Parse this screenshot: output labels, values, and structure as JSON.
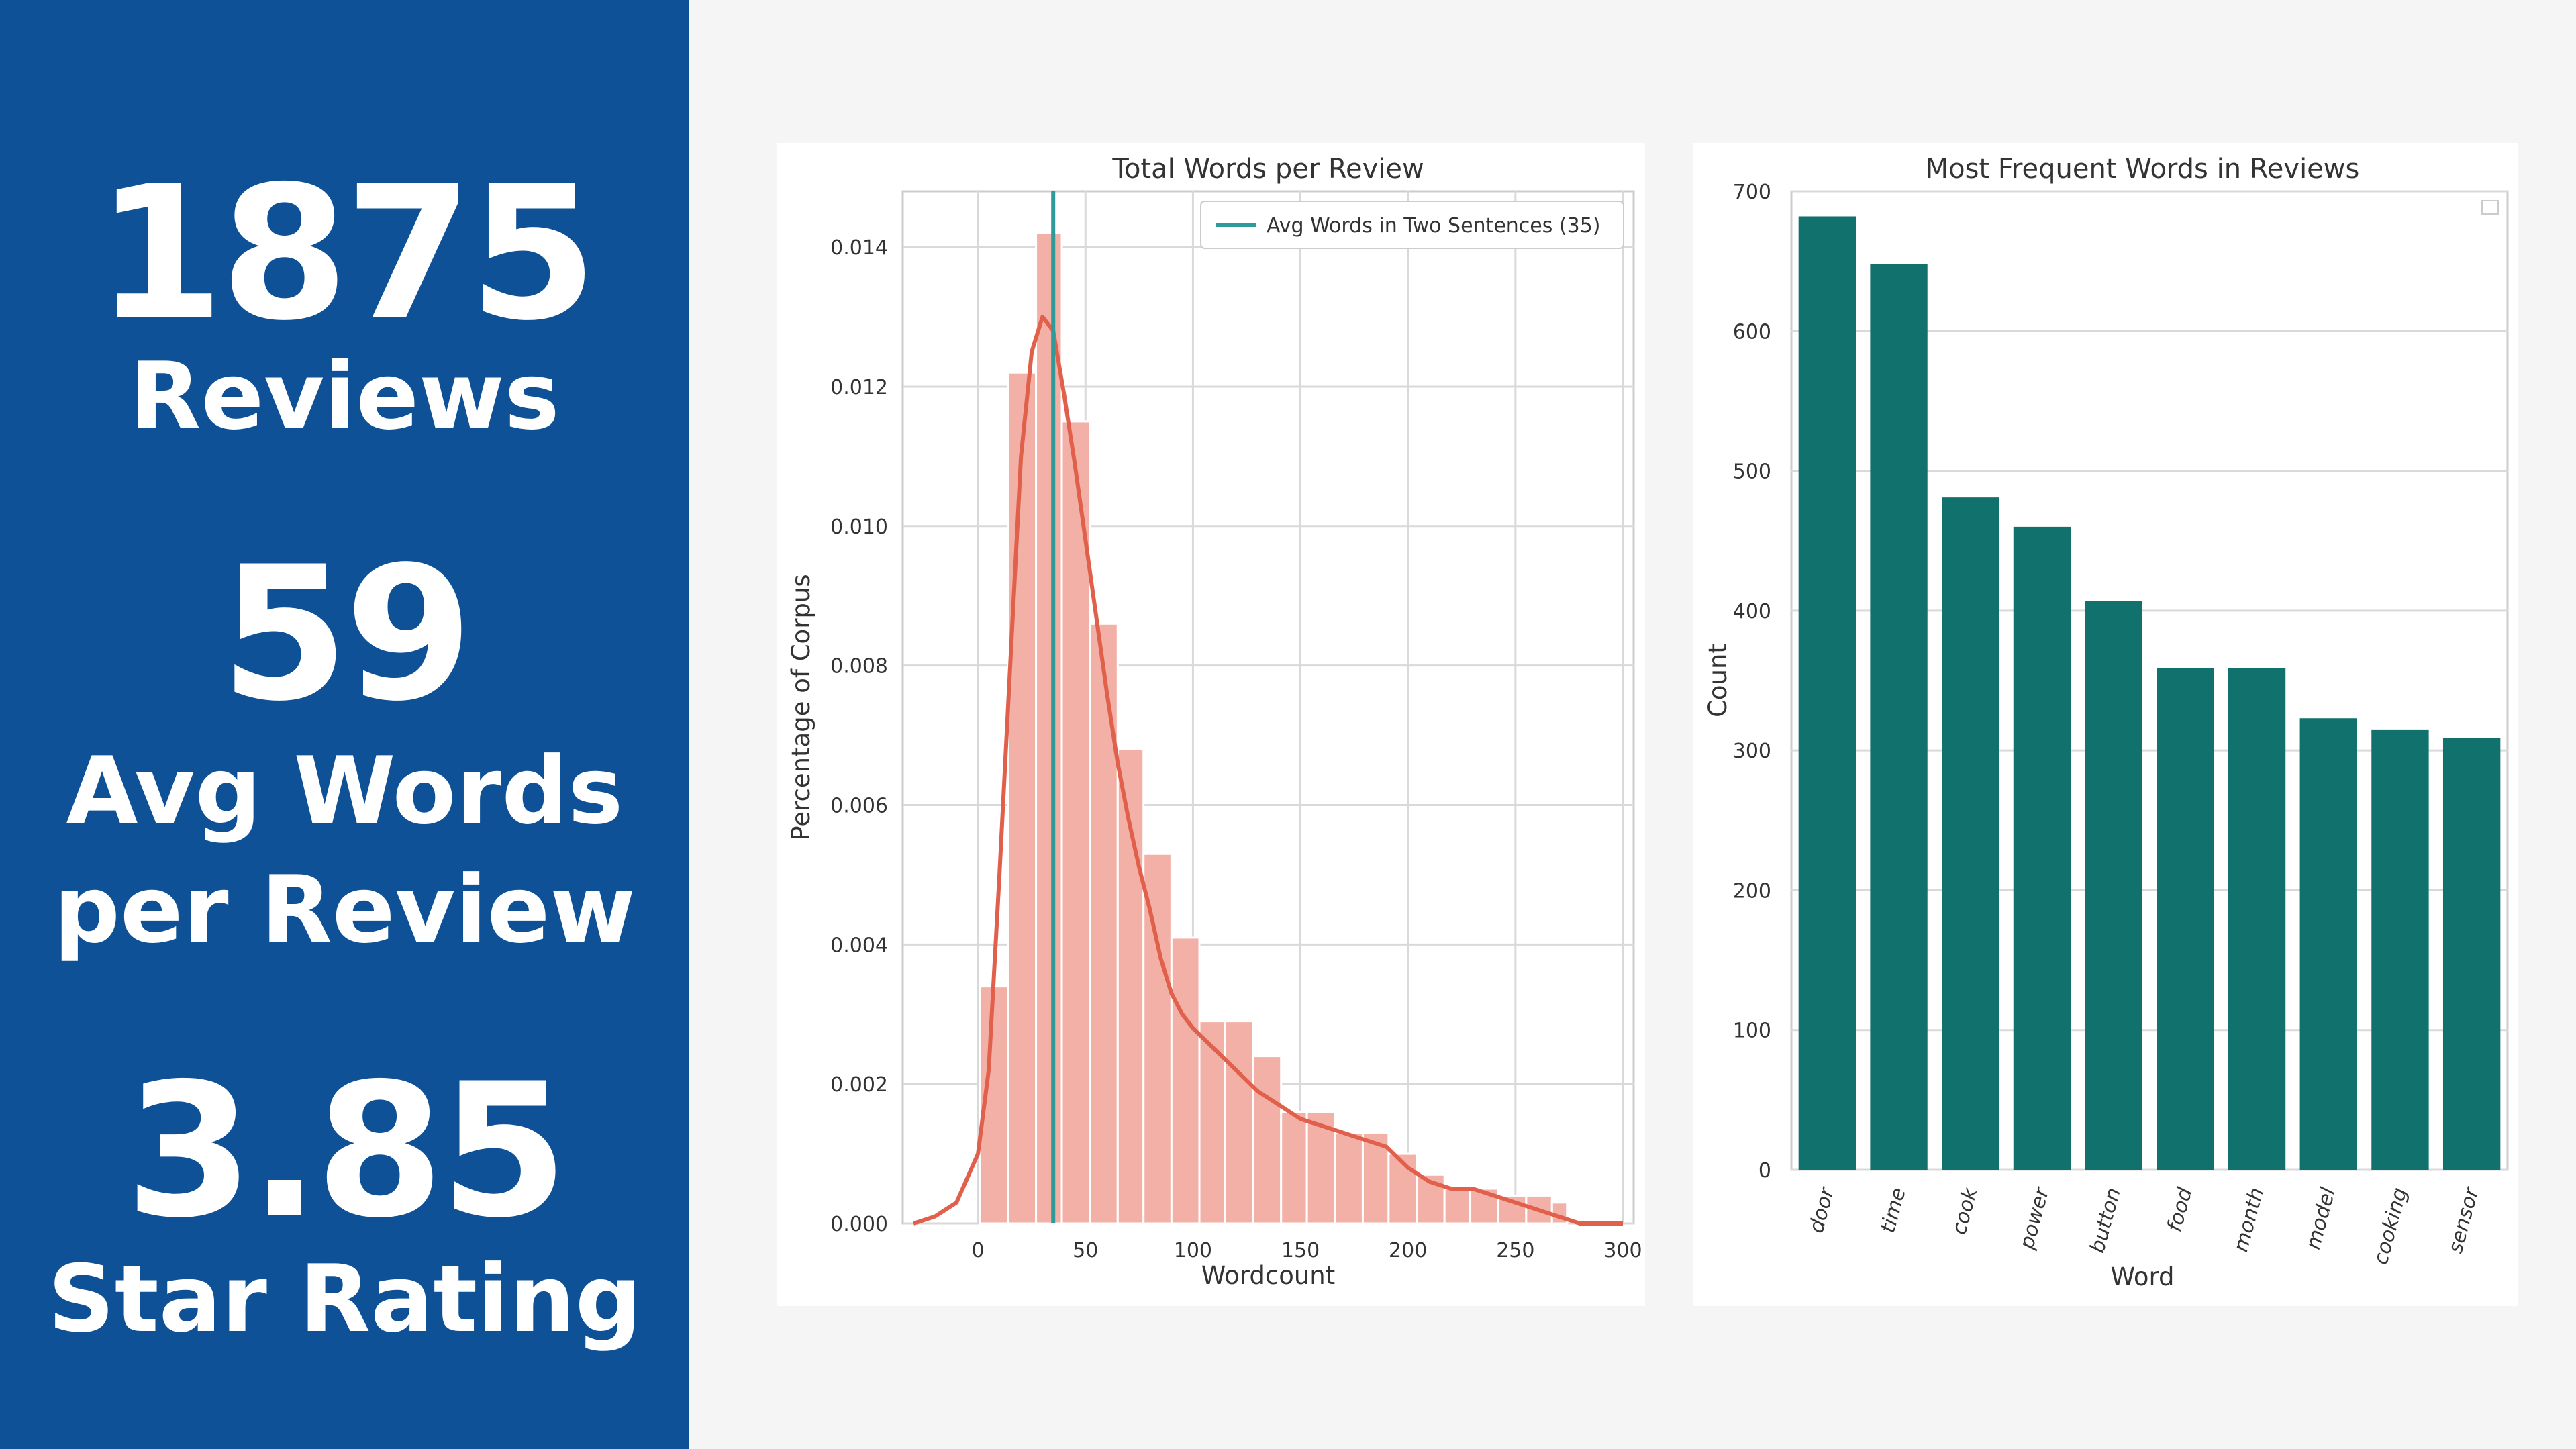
{
  "stats": {
    "reviews": {
      "value": "1875",
      "label": "Reviews"
    },
    "avg_words": {
      "value": "59",
      "label_line1": "Avg Words",
      "label_line2": "per Review"
    },
    "rating": {
      "value": "3.85",
      "label": "Star Rating"
    }
  },
  "colors": {
    "sidebar": "#0e5196",
    "hist_bar": "#f2b0a6",
    "kde_line": "#e0604b",
    "avg_line": "#2e9a9a",
    "bar_fill": "#11716c"
  },
  "chart_data": [
    {
      "type": "bar",
      "subtype": "histogram-with-kde",
      "title": "Total Words per Review",
      "xlabel": "Wordcount",
      "ylabel": "Percentage of Corpus",
      "xlim": [
        -35,
        305
      ],
      "ylim": [
        0,
        0.0148
      ],
      "xticks": [
        "0",
        "50",
        "100",
        "150",
        "200",
        "250",
        "300"
      ],
      "yticks": [
        "0.000",
        "0.002",
        "0.004",
        "0.006",
        "0.008",
        "0.010",
        "0.012",
        "0.014"
      ],
      "grid": true,
      "legend_position": "top-right",
      "bin_edges": [
        1,
        14,
        27,
        39,
        52,
        65,
        77,
        90,
        103,
        115,
        128,
        141,
        153,
        166,
        179,
        191,
        204,
        217,
        229,
        242,
        255,
        267,
        274
      ],
      "values": [
        0.0034,
        0.0122,
        0.0142,
        0.0115,
        0.0086,
        0.0068,
        0.0053,
        0.0041,
        0.0029,
        0.0029,
        0.0024,
        0.0016,
        0.0016,
        0.0013,
        0.0013,
        0.001,
        0.0007,
        0.0005,
        0.0005,
        0.0004,
        0.0004,
        0.0003
      ],
      "kde": {
        "x": [
          -30,
          -20,
          -10,
          0,
          5,
          10,
          15,
          20,
          25,
          30,
          35,
          40,
          45,
          50,
          55,
          60,
          65,
          70,
          75,
          80,
          85,
          90,
          95,
          100,
          110,
          120,
          130,
          140,
          150,
          160,
          170,
          180,
          190,
          200,
          210,
          220,
          230,
          240,
          250,
          260,
          270,
          280,
          290,
          300
        ],
        "y": [
          0.0,
          0.0001,
          0.0003,
          0.001,
          0.0022,
          0.005,
          0.008,
          0.011,
          0.0125,
          0.013,
          0.0128,
          0.0119,
          0.0109,
          0.0098,
          0.0087,
          0.0076,
          0.0066,
          0.0058,
          0.0051,
          0.0045,
          0.0038,
          0.0033,
          0.003,
          0.0028,
          0.0025,
          0.0022,
          0.0019,
          0.0017,
          0.0015,
          0.0014,
          0.0013,
          0.0012,
          0.0011,
          0.0008,
          0.0006,
          0.0005,
          0.0005,
          0.0004,
          0.0003,
          0.0002,
          0.0001,
          0.0,
          0.0,
          0.0
        ]
      },
      "vline": {
        "x": 35,
        "label": "Avg Words in Two Sentences (35)"
      }
    },
    {
      "type": "bar",
      "title": "Most Frequent Words in Reviews",
      "xlabel": "Word",
      "ylabel": "Count",
      "ylim": [
        0,
        700
      ],
      "yticks": [
        "0",
        "100",
        "200",
        "300",
        "400",
        "500",
        "600",
        "700"
      ],
      "grid": true,
      "categories": [
        "door",
        "time",
        "cook",
        "power",
        "button",
        "food",
        "month",
        "model",
        "cooking",
        "sensor"
      ],
      "values": [
        682,
        648,
        481,
        460,
        407,
        359,
        359,
        323,
        315,
        309
      ]
    }
  ]
}
